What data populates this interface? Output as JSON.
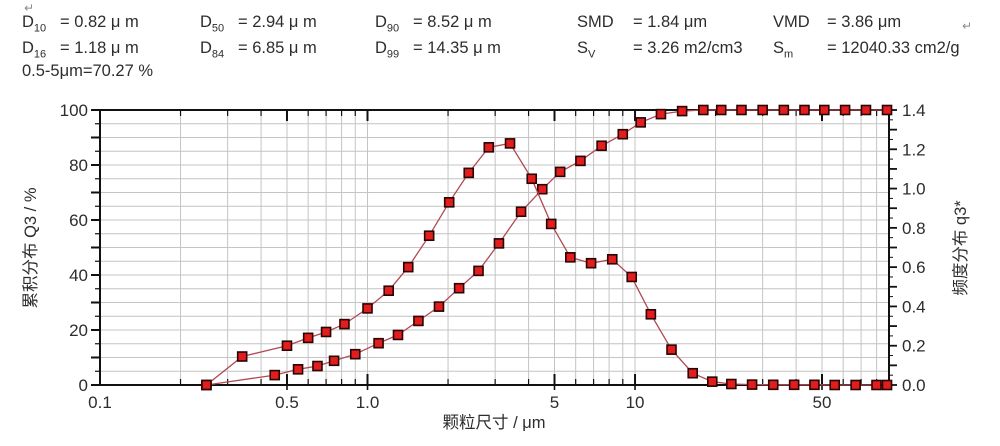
{
  "stats": {
    "return_mark": "↵",
    "row1": [
      {
        "base": "D",
        "sub": "10",
        "text": "= 0.82 μ m"
      },
      {
        "base": "D",
        "sub": "50",
        "text": "= 2.94 μ m"
      },
      {
        "base": "D",
        "sub": "90",
        "text": "= 8.52 μ m"
      },
      {
        "base": "SMD",
        "sub": "",
        "text": "= 1.84 μm"
      },
      {
        "base": "VMD",
        "sub": "",
        "text": "= 3.86 μm"
      }
    ],
    "row2": [
      {
        "base": "D",
        "sub": "16",
        "text": "= 1.18 μ m"
      },
      {
        "base": "D",
        "sub": "84",
        "text": "= 6.85 μ m"
      },
      {
        "base": "D",
        "sub": "99",
        "text": "= 14.35 μ m"
      },
      {
        "base": "S",
        "sub": "V",
        "text": "= 3.26 m2/cm3"
      },
      {
        "base": "S",
        "sub": "m",
        "text": "= 12040.33 cm2/g"
      }
    ],
    "fraction_line": "0.5-5μm=70.27 %"
  },
  "chart_data": {
    "type": "line",
    "x_axis": {
      "label": "颗粒尺寸 / μm",
      "scale": "log",
      "min": 0.1,
      "max": 89,
      "tick_values": [
        0.1,
        0.5,
        1.0,
        5,
        10,
        50
      ],
      "tick_labels": [
        "0.1",
        "0.5",
        "1.0",
        "5",
        "10",
        "50"
      ],
      "major_tick_values": [
        0.5,
        1,
        5,
        10,
        50
      ]
    },
    "y_left": {
      "label": "累积分布 Q3 / %",
      "min": 0,
      "max": 100,
      "tick_values": [
        0,
        20,
        40,
        60,
        80,
        100
      ],
      "tick_labels": [
        "0",
        "20",
        "40",
        "60",
        "80",
        "100"
      ],
      "minor_step": 5,
      "grid_step": 5
    },
    "y_right": {
      "label": "频度分布 q3*",
      "min": 0.0,
      "max": 1.4,
      "tick_values": [
        0.0,
        0.2,
        0.4,
        0.6,
        0.8,
        1.0,
        1.2,
        1.4
      ],
      "tick_labels": [
        "0.0",
        "0.2",
        "0.4",
        "0.6",
        "0.8",
        "1.0",
        "1.2",
        "1.4"
      ],
      "minor_step": 0.05
    },
    "grid": true,
    "legend": "none",
    "series": [
      {
        "name": "cumulative-distribution-Q3",
        "axis": "left",
        "marker": "square",
        "points": [
          [
            0.25,
            0
          ],
          [
            0.45,
            3.6
          ],
          [
            0.55,
            5.7
          ],
          [
            0.65,
            6.9
          ],
          [
            0.75,
            8.8
          ],
          [
            0.9,
            11.2
          ],
          [
            1.1,
            15.2
          ],
          [
            1.3,
            18.2
          ],
          [
            1.55,
            23.3
          ],
          [
            1.85,
            28.5
          ],
          [
            2.2,
            35.2
          ],
          [
            2.6,
            41.5
          ],
          [
            3.1,
            51.5
          ],
          [
            3.75,
            63.0
          ],
          [
            4.5,
            71.2
          ],
          [
            5.25,
            77.5
          ],
          [
            6.25,
            81.5
          ],
          [
            7.5,
            87.0
          ],
          [
            9.0,
            91.2
          ],
          [
            10.5,
            95.5
          ],
          [
            12.5,
            98.5
          ],
          [
            15,
            99.6
          ],
          [
            18,
            100
          ],
          [
            21,
            100
          ],
          [
            25,
            100
          ],
          [
            30,
            100
          ],
          [
            36,
            100
          ],
          [
            43,
            100
          ],
          [
            51,
            100
          ],
          [
            61,
            100
          ],
          [
            73,
            100
          ],
          [
            87.5,
            100
          ]
        ]
      },
      {
        "name": "frequency-distribution-q3",
        "axis": "right",
        "marker": "square",
        "points": [
          [
            0.25,
            0
          ],
          [
            0.34,
            0.145
          ],
          [
            0.5,
            0.2
          ],
          [
            0.6,
            0.24
          ],
          [
            0.7,
            0.27
          ],
          [
            0.82,
            0.31
          ],
          [
            1.0,
            0.39
          ],
          [
            1.2,
            0.48
          ],
          [
            1.42,
            0.6
          ],
          [
            1.7,
            0.76
          ],
          [
            2.02,
            0.93
          ],
          [
            2.39,
            1.08
          ],
          [
            2.84,
            1.21
          ],
          [
            3.41,
            1.23
          ],
          [
            4.11,
            1.05
          ],
          [
            4.86,
            0.82
          ],
          [
            5.73,
            0.65
          ],
          [
            6.85,
            0.62
          ],
          [
            8.22,
            0.64
          ],
          [
            9.72,
            0.55
          ],
          [
            11.46,
            0.36
          ],
          [
            13.69,
            0.18
          ],
          [
            16.43,
            0.06
          ],
          [
            19.44,
            0.017
          ],
          [
            22.91,
            0.005
          ],
          [
            27.39,
            0.002
          ],
          [
            32.86,
            0.001
          ],
          [
            39.34,
            0.001
          ],
          [
            46.84,
            0.001
          ],
          [
            55.78,
            0.0
          ],
          [
            66.77,
            0.0
          ],
          [
            79.92,
            0.0
          ],
          [
            87.5,
            0.0
          ]
        ]
      }
    ],
    "colors": {
      "line": "#b04a55",
      "marker_fill": "#e21d1d",
      "marker_stroke": "#2a0303",
      "grid": "#c4c4c4",
      "axis": "#111111",
      "text": "#2d2d2d"
    }
  }
}
